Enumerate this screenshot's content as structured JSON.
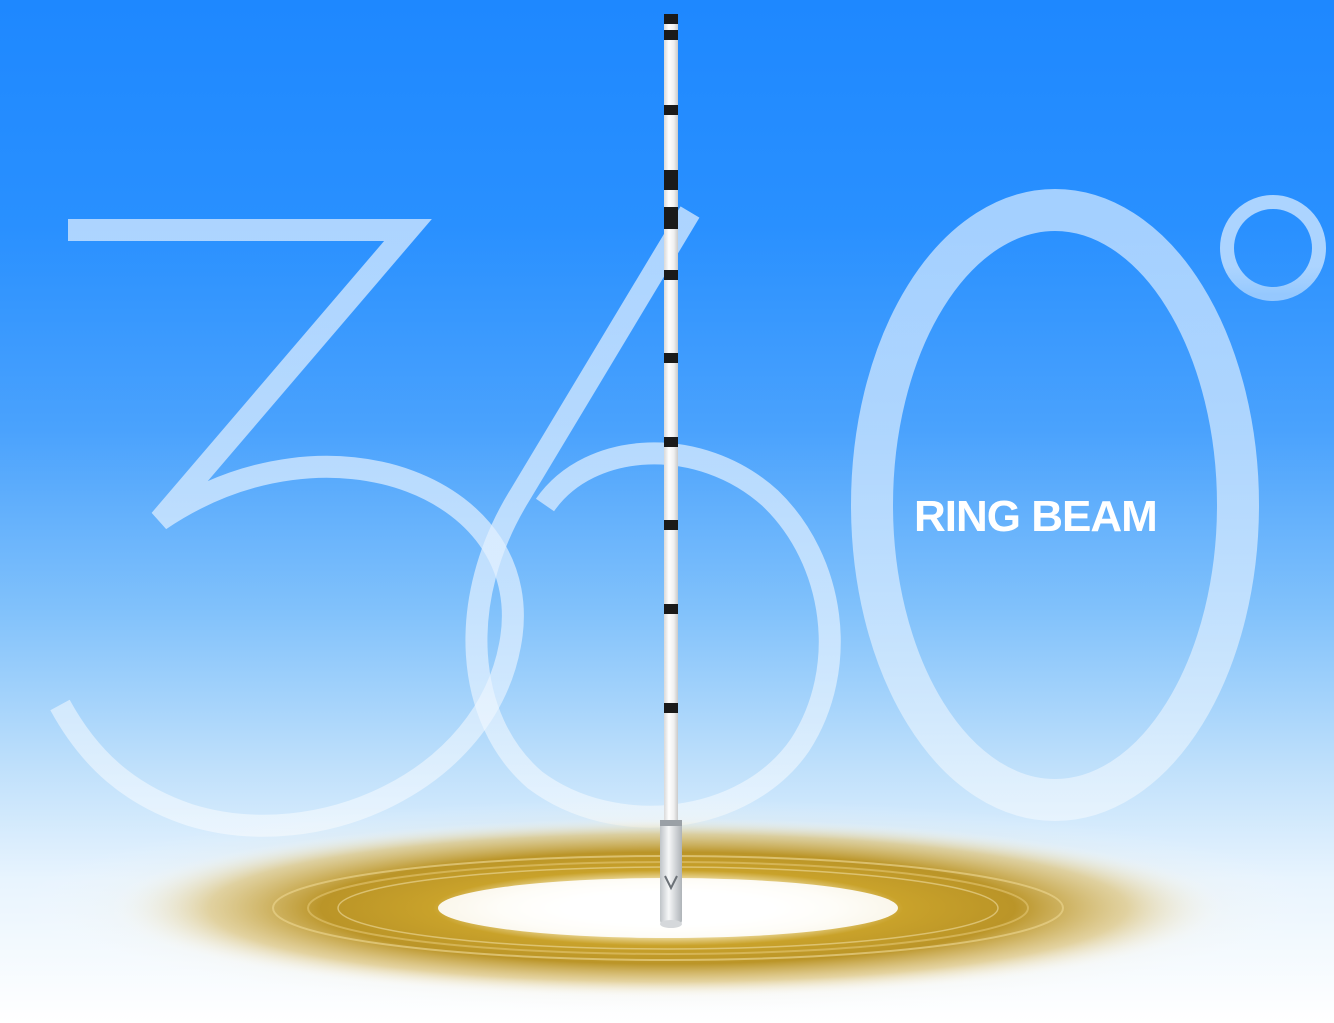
{
  "hero": {
    "digits": "360",
    "degree_symbol": "°",
    "label": "RING BEAM"
  },
  "colors": {
    "sky_top": "#1e88ff",
    "sky_bottom": "#ffffff",
    "digit_outline": "#cfe6ff",
    "beam_ring": "#c9a22a",
    "antenna_body": "#f4f4f4",
    "antenna_band": "#1a1a1a"
  },
  "icons": {
    "antenna": "antenna-icon",
    "ring": "signal-ring-icon"
  }
}
